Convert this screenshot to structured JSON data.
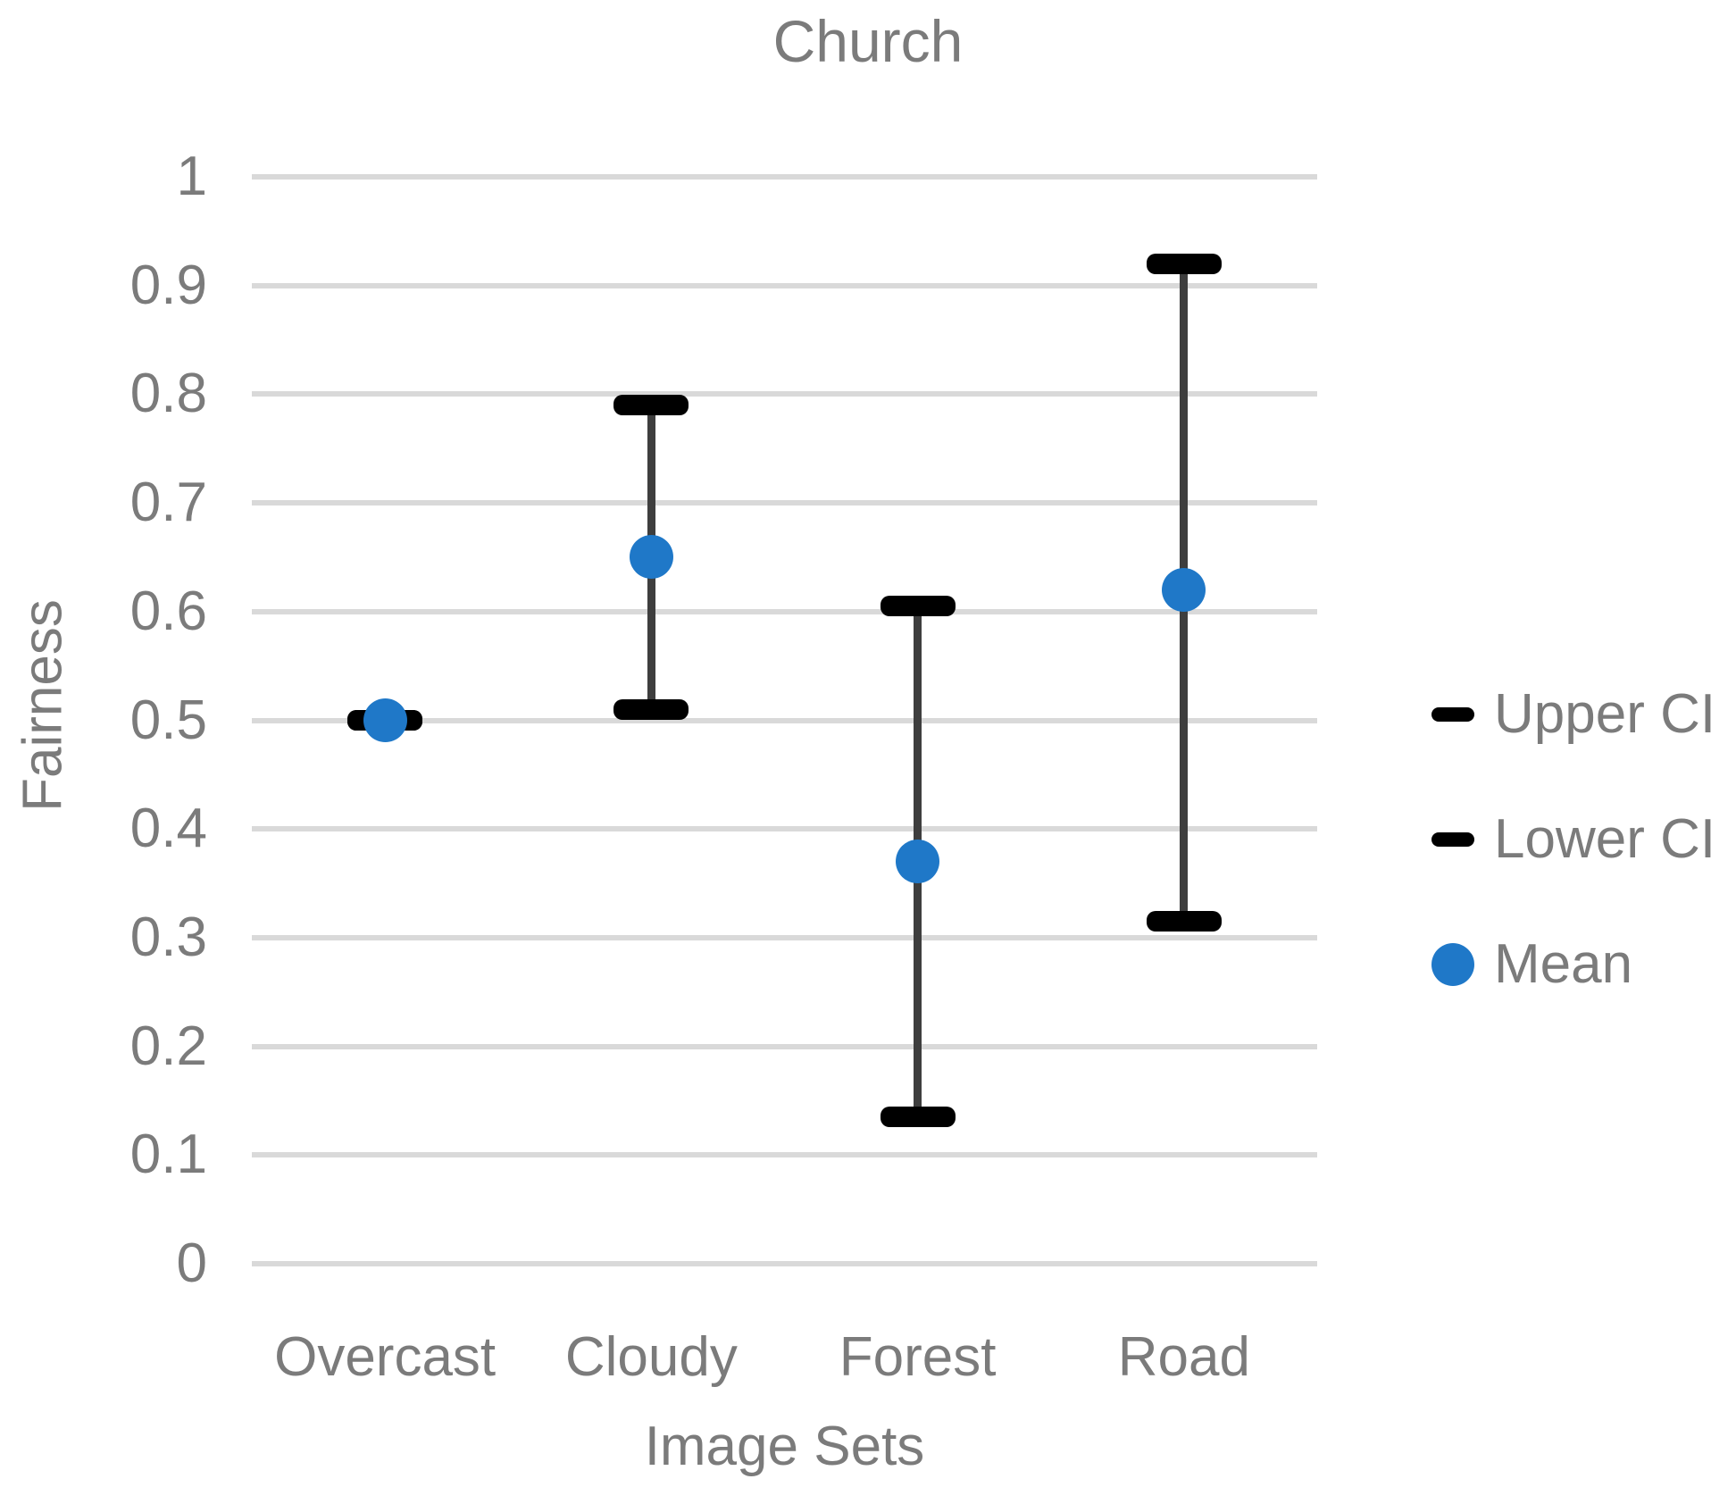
{
  "chart_data": {
    "type": "scatter",
    "title": "Church",
    "xlabel": "Image Sets",
    "ylabel": "Fairness",
    "categories": [
      "Overcast",
      "Cloudy",
      "Forest",
      "Road"
    ],
    "series": [
      {
        "name": "Upper CI",
        "marker": "dash",
        "color": "#000000",
        "values": [
          0.5,
          0.79,
          0.605,
          0.92
        ]
      },
      {
        "name": "Lower CI",
        "marker": "dash",
        "color": "#000000",
        "values": [
          0.5,
          0.51,
          0.135,
          0.315
        ]
      },
      {
        "name": "Mean",
        "marker": "circle",
        "color": "#1f78c8",
        "values": [
          0.5,
          0.65,
          0.37,
          0.62
        ]
      }
    ],
    "ylim": [
      0,
      1
    ],
    "ytick_labels": [
      "0",
      "0.1",
      "0.2",
      "0.3",
      "0.4",
      "0.5",
      "0.6",
      "0.7",
      "0.8",
      "0.9",
      "1"
    ],
    "grid": true,
    "legend_position": "right",
    "colors": {
      "mean_blue": "#1f78c8",
      "cap_black": "#000000",
      "error_line": "#3e3e3e",
      "gridline": "#d9d9d9",
      "text_gray": "#7b7b7b"
    }
  }
}
